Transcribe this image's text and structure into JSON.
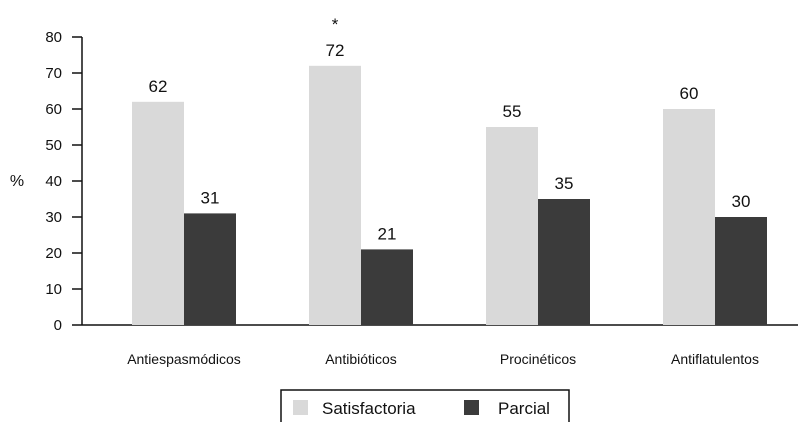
{
  "chart_data": {
    "type": "bar",
    "categories": [
      "Antiespasmódicos",
      "Antibióticos",
      "Procinéticos",
      "Antiflatulentos"
    ],
    "series": [
      {
        "name": "Satisfactoria",
        "values": [
          62,
          72,
          55,
          60
        ],
        "color": "#d9d9d9"
      },
      {
        "name": "Parcial",
        "values": [
          31,
          21,
          35,
          30
        ],
        "color": "#3b3b3b"
      }
    ],
    "data_labels": [
      [
        "62",
        "72",
        "55",
        "60"
      ],
      [
        "31",
        "21",
        "35",
        "30"
      ]
    ],
    "ylabel": "%",
    "xlabel": "",
    "ylim": [
      0,
      80
    ],
    "yticks": [
      0,
      10,
      20,
      30,
      40,
      50,
      60,
      70,
      80
    ],
    "grid": false,
    "legend_position": "bottom",
    "annotations": [
      {
        "text": "*",
        "category": "Antibióticos",
        "series": "Satisfactoria"
      }
    ]
  }
}
